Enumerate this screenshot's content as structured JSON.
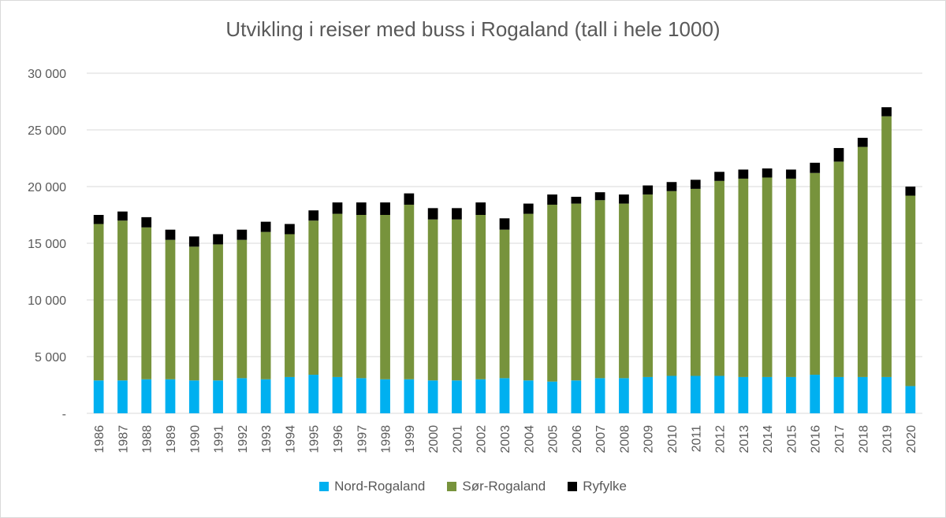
{
  "chart_data": {
    "type": "bar",
    "stacked": true,
    "title": "Utvikling i reiser med buss i Rogaland (tall i hele 1000)",
    "xlabel": "",
    "ylabel": "",
    "ylim": [
      0,
      30000
    ],
    "yticks": [
      0,
      5000,
      10000,
      15000,
      20000,
      25000,
      30000
    ],
    "ytick_labels": [
      "-",
      "5 000",
      "10 000",
      "15 000",
      "20 000",
      "25 000",
      "30 000"
    ],
    "grid": true,
    "legend_position": "bottom",
    "categories": [
      "1986",
      "1987",
      "1988",
      "1989",
      "1990",
      "1991",
      "1992",
      "1993",
      "1994",
      "1995",
      "1996",
      "1997",
      "1998",
      "1999",
      "2000",
      "2001",
      "2002",
      "2003",
      "2004",
      "2005",
      "2006",
      "2007",
      "2008",
      "2009",
      "2010",
      "2011",
      "2012",
      "2013",
      "2014",
      "2015",
      "2016",
      "2017",
      "2018",
      "2019",
      "2020"
    ],
    "series": [
      {
        "name": "Nord-Rogaland",
        "color": "#00b0f0",
        "values": [
          2900,
          2900,
          3000,
          3000,
          2900,
          2900,
          3100,
          3000,
          3200,
          3400,
          3200,
          3100,
          3000,
          3000,
          2900,
          2900,
          3000,
          3100,
          2900,
          2800,
          2900,
          3100,
          3100,
          3200,
          3300,
          3300,
          3300,
          3200,
          3200,
          3200,
          3400,
          3200,
          3200,
          3200,
          2400
        ]
      },
      {
        "name": "Sør-Rogaland",
        "color": "#77933c",
        "values": [
          13800,
          14100,
          13400,
          12300,
          11800,
          12000,
          12200,
          13000,
          12600,
          13600,
          14400,
          14400,
          14500,
          15400,
          14200,
          14200,
          14500,
          13100,
          14700,
          15600,
          15600,
          15700,
          15400,
          16100,
          16300,
          16500,
          17200,
          17500,
          17600,
          17500,
          17800,
          19000,
          20300,
          23000,
          16800
        ]
      },
      {
        "name": "Ryfylke",
        "color": "#000000",
        "values": [
          800,
          800,
          900,
          900,
          900,
          900,
          900,
          900,
          900,
          900,
          1000,
          1100,
          1100,
          1000,
          1000,
          1000,
          1100,
          1000,
          900,
          900,
          600,
          700,
          800,
          800,
          800,
          800,
          800,
          800,
          800,
          800,
          900,
          1200,
          800,
          800,
          800
        ]
      }
    ]
  }
}
